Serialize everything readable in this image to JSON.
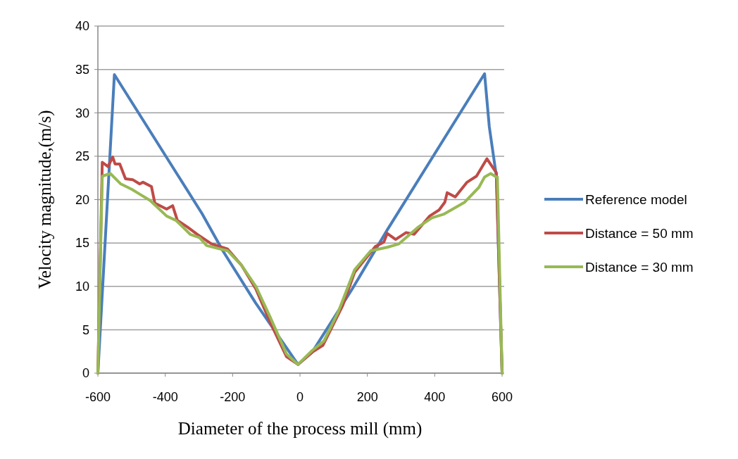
{
  "chart_data": {
    "type": "line",
    "xlabel": "Diameter of the process mill (mm)",
    "ylabel": "Velocity magnitude,(m/s)",
    "xlim": [
      -600,
      600
    ],
    "xticks": [
      -600,
      -400,
      -200,
      0,
      200,
      400,
      600
    ],
    "ylim": [
      0,
      40
    ],
    "yticks": [
      0,
      5,
      10,
      15,
      20,
      25,
      30,
      35,
      40
    ],
    "grid": "y",
    "legend": "right",
    "marker": "none",
    "line_style": "solid",
    "series": [
      {
        "name": "Reference model",
        "color": "#4a7ebb",
        "x": [
          -600,
          -551,
          -291,
          -229,
          -132,
          -6,
          36,
          155,
          259,
          548,
          562,
          583,
          600
        ],
        "values": [
          0,
          34.4,
          18.4,
          14.1,
          8.1,
          1.0,
          2.4,
          9.7,
          16.5,
          34.5,
          28.4,
          22.7,
          0
        ]
      },
      {
        "name": "Distance = 50 mm",
        "color": "#be4b48",
        "x": [
          -600,
          -587,
          -570,
          -556,
          -549,
          -535,
          -518,
          -497,
          -476,
          -466,
          -441,
          -431,
          -396,
          -378,
          -364,
          -333,
          -305,
          -263,
          -215,
          -173,
          -131,
          -89,
          -40,
          -6,
          36,
          68,
          127,
          162,
          224,
          249,
          259,
          284,
          315,
          339,
          385,
          413,
          430,
          437,
          461,
          496,
          524,
          555,
          583,
          600
        ],
        "values": [
          0,
          24.3,
          23.8,
          24.9,
          24.1,
          24.1,
          22.4,
          22.3,
          21.8,
          22.0,
          21.5,
          19.6,
          18.9,
          19.3,
          17.6,
          16.8,
          16.0,
          14.9,
          14.3,
          12.4,
          9.7,
          5.9,
          1.9,
          1.0,
          2.4,
          3.2,
          7.8,
          11.6,
          14.6,
          15.1,
          16.1,
          15.4,
          16.2,
          16.0,
          18.1,
          18.8,
          19.7,
          20.8,
          20.3,
          22.0,
          22.7,
          24.7,
          23.1,
          0
        ]
      },
      {
        "name": "Distance = 30 mm",
        "color": "#98b954",
        "x": [
          -600,
          -587,
          -563,
          -532,
          -500,
          -479,
          -445,
          -396,
          -368,
          -326,
          -298,
          -277,
          -215,
          -173,
          -131,
          -89,
          -40,
          -6,
          36,
          71,
          113,
          162,
          210,
          259,
          294,
          350,
          392,
          426,
          489,
          531,
          548,
          566,
          583,
          586,
          600
        ],
        "values": [
          0,
          22.7,
          23.0,
          21.8,
          21.2,
          20.7,
          19.9,
          18.1,
          17.6,
          16.0,
          15.6,
          14.7,
          14.1,
          12.4,
          10.0,
          6.5,
          2.2,
          1.0,
          2.6,
          3.7,
          7.0,
          11.9,
          14.1,
          14.5,
          14.9,
          16.8,
          17.9,
          18.3,
          19.7,
          21.4,
          22.6,
          23.0,
          22.6,
          22.6,
          0
        ]
      }
    ]
  }
}
